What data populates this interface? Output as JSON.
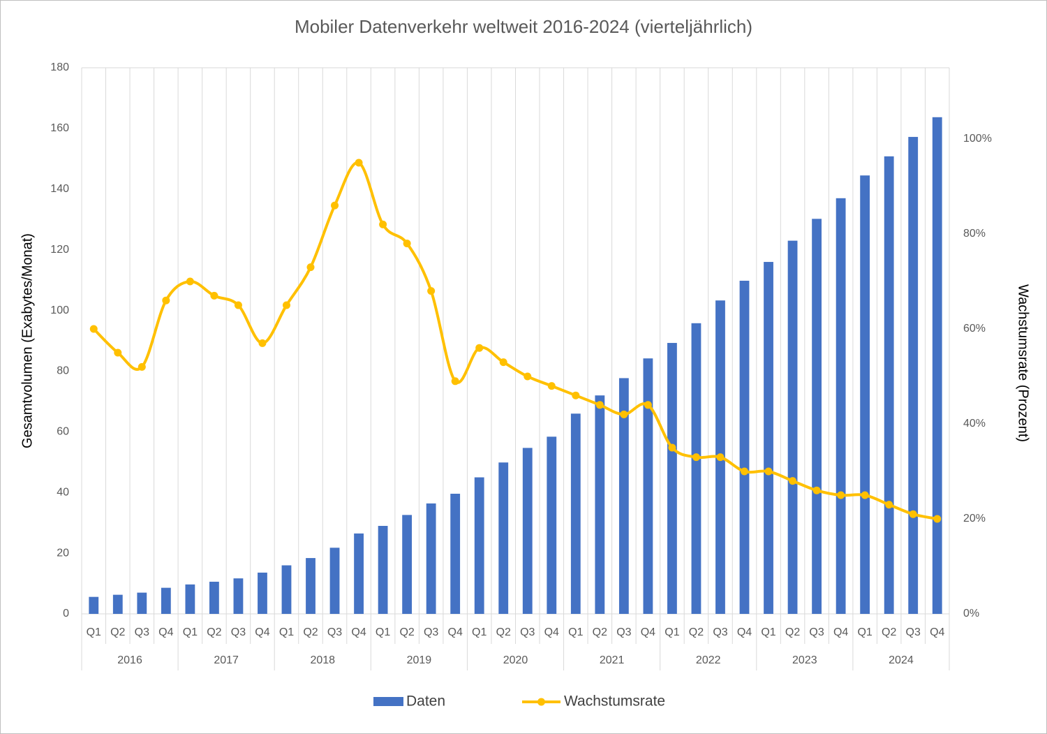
{
  "chart_data": {
    "type": "bar",
    "title": "Mobiler Datenverkehr weltweit 2016-2024 (vierteljährlich)",
    "y_label": "Gesamtvolumen (Exabytes/Monat)",
    "y2_label": "Wachstumsrate (Prozent)",
    "categories": [
      "Q1",
      "Q2",
      "Q3",
      "Q4",
      "Q1",
      "Q2",
      "Q3",
      "Q4",
      "Q1",
      "Q2",
      "Q3",
      "Q4",
      "Q1",
      "Q2",
      "Q3",
      "Q4",
      "Q1",
      "Q2",
      "Q3",
      "Q4",
      "Q1",
      "Q2",
      "Q3",
      "Q4",
      "Q1",
      "Q2",
      "Q3",
      "Q4",
      "Q1",
      "Q2",
      "Q3",
      "Q4",
      "Q1",
      "Q2",
      "Q3",
      "Q4"
    ],
    "category_groups": [
      "2016",
      "2017",
      "2018",
      "2019",
      "2020",
      "2021",
      "2022",
      "2023",
      "2024"
    ],
    "series": [
      {
        "name": "Daten",
        "type": "bar",
        "color": "#4472c4",
        "values": [
          5.6,
          6.3,
          7.0,
          8.6,
          9.7,
          10.6,
          11.7,
          13.6,
          16.0,
          18.4,
          21.8,
          26.5,
          29.0,
          32.6,
          36.4,
          39.6,
          45.0,
          49.9,
          54.7,
          58.4,
          66.0,
          72.0,
          77.7,
          84.2,
          89.3,
          95.8,
          103.3,
          109.8,
          116.0,
          123.0,
          130.2,
          137.0,
          144.5,
          150.8,
          157.2,
          163.7
        ]
      },
      {
        "name": "Wachstumsrate",
        "type": "line",
        "axis": "y2",
        "color": "#ffc000",
        "values": [
          60,
          55,
          52,
          66,
          70,
          67,
          65,
          57,
          65,
          73,
          86,
          95,
          82,
          78,
          68,
          49,
          56,
          53,
          50,
          48,
          46,
          44,
          42,
          44,
          35,
          33,
          33,
          30,
          30,
          28,
          26,
          25,
          25,
          23,
          21,
          20
        ]
      }
    ],
    "ylim": [
      0,
      180
    ],
    "yticks": [
      0,
      20,
      40,
      60,
      80,
      100,
      120,
      140,
      160,
      180
    ],
    "y2lim": [
      0,
      115
    ],
    "y2ticks": [
      {
        "value": 0,
        "label": "0%"
      },
      {
        "value": 20,
        "label": "20%"
      },
      {
        "value": 40,
        "label": "40%"
      },
      {
        "value": 60,
        "label": "60%"
      },
      {
        "value": 80,
        "label": "80%"
      },
      {
        "value": 100,
        "label": "100%"
      }
    ],
    "grid": true,
    "legend": "bottom"
  }
}
